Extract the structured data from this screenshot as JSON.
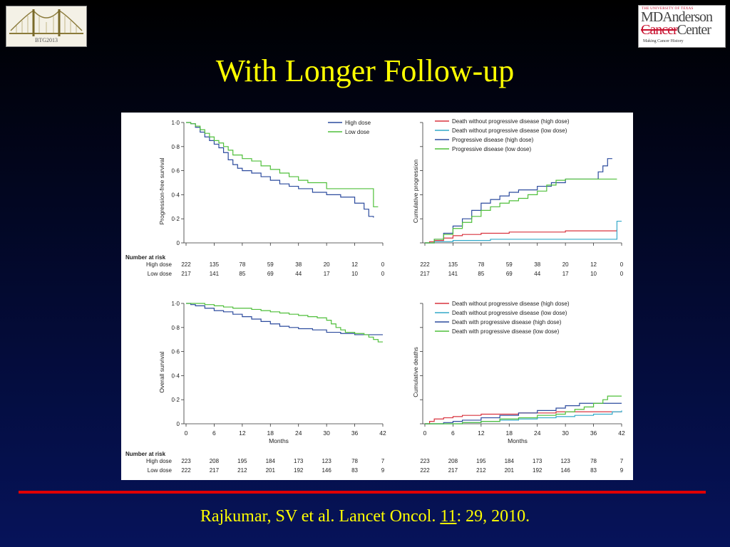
{
  "slide": {
    "title": "With Longer Follow-up",
    "logo_left_text": "BTG2013",
    "logo_right": {
      "top": "THE UNIVERSITY OF TEXAS",
      "line1": "MDAnderson",
      "line2a": "Cancer",
      "line2b": "Center",
      "tagline": "Making Cancer History"
    },
    "citation": {
      "before": "Rajkumar, SV et al. Lancet Oncol. ",
      "volume": "11",
      "after": ": 29, 2010."
    }
  },
  "colors": {
    "high": "#2c4b9e",
    "low": "#4fbf3a",
    "red": "#d9333f",
    "cyan": "#32a9c9",
    "grid": "#333333"
  },
  "chart_data": [
    {
      "type": "line",
      "xlabel": "",
      "ylabel": "Progression-free survival",
      "xlim": [
        0,
        42
      ],
      "ylim": [
        0,
        1
      ],
      "yticks": [
        "0",
        "0·2",
        "0·4",
        "0·6",
        "0·8",
        "1·0"
      ],
      "xticks": [],
      "step": true,
      "series": [
        {
          "name": "High dose",
          "color": "high",
          "x": [
            0,
            1,
            2,
            3,
            4,
            5,
            6,
            7,
            8,
            9,
            10,
            11,
            12,
            14,
            16,
            18,
            20,
            22,
            24,
            27,
            30,
            33,
            36,
            38,
            39,
            40
          ],
          "y": [
            1.0,
            0.99,
            0.96,
            0.92,
            0.88,
            0.85,
            0.82,
            0.79,
            0.75,
            0.69,
            0.65,
            0.62,
            0.6,
            0.58,
            0.55,
            0.52,
            0.49,
            0.47,
            0.45,
            0.42,
            0.4,
            0.38,
            0.33,
            0.28,
            0.22,
            0.21
          ]
        },
        {
          "name": "Low dose",
          "color": "low",
          "x": [
            0,
            1,
            2,
            3,
            4,
            5,
            6,
            7,
            8,
            9,
            10,
            12,
            14,
            16,
            18,
            20,
            22,
            24,
            26,
            28,
            30,
            33,
            36,
            40,
            41
          ],
          "y": [
            1.0,
            0.99,
            0.97,
            0.94,
            0.91,
            0.88,
            0.85,
            0.83,
            0.8,
            0.77,
            0.73,
            0.7,
            0.68,
            0.64,
            0.61,
            0.58,
            0.55,
            0.52,
            0.5,
            0.5,
            0.45,
            0.45,
            0.45,
            0.3,
            0.3
          ]
        }
      ],
      "legend": [
        "High dose",
        "Low dose"
      ],
      "number_at_risk": {
        "title": "Number at risk",
        "rows": [
          {
            "label": "High dose",
            "values": [
              "222",
              "135",
              "78",
              "59",
              "38",
              "20",
              "12",
              "0"
            ]
          },
          {
            "label": "Low dose",
            "values": [
              "217",
              "141",
              "85",
              "69",
              "44",
              "17",
              "10",
              "0"
            ]
          }
        ]
      }
    },
    {
      "type": "line",
      "xlabel": "",
      "ylabel": "Cumulative progression",
      "xlim": [
        0,
        42
      ],
      "ylim": [
        0,
        1
      ],
      "yticks": [],
      "xticks": [],
      "step": true,
      "series": [
        {
          "name": "Death without progressive disease (high dose)",
          "color": "red",
          "x": [
            0,
            1,
            2,
            4,
            6,
            8,
            10,
            12,
            14,
            16,
            18,
            20,
            24,
            30,
            36,
            41
          ],
          "y": [
            0,
            0.01,
            0.02,
            0.04,
            0.06,
            0.07,
            0.07,
            0.08,
            0.08,
            0.08,
            0.09,
            0.09,
            0.09,
            0.1,
            0.1,
            0.11
          ]
        },
        {
          "name": "Death without progressive disease (low dose)",
          "color": "cyan",
          "x": [
            0,
            2,
            6,
            10,
            14,
            18,
            24,
            30,
            36,
            40,
            41,
            42
          ],
          "y": [
            0,
            0.01,
            0.02,
            0.02,
            0.03,
            0.03,
            0.03,
            0.03,
            0.03,
            0.03,
            0.18,
            0.18
          ]
        },
        {
          "name": "Progressive disease (high dose)",
          "color": "high",
          "x": [
            0,
            2,
            4,
            6,
            8,
            10,
            12,
            14,
            16,
            18,
            20,
            24,
            27,
            30,
            33,
            36,
            37,
            38,
            39,
            40
          ],
          "y": [
            0,
            0.03,
            0.08,
            0.14,
            0.2,
            0.27,
            0.33,
            0.36,
            0.39,
            0.42,
            0.44,
            0.47,
            0.5,
            0.53,
            0.53,
            0.53,
            0.59,
            0.64,
            0.7,
            0.7
          ]
        },
        {
          "name": "Progressive disease (low dose)",
          "color": "low",
          "x": [
            0,
            2,
            4,
            6,
            8,
            10,
            12,
            14,
            16,
            18,
            20,
            22,
            24,
            26,
            28,
            30,
            32,
            36,
            41
          ],
          "y": [
            0,
            0.03,
            0.07,
            0.12,
            0.17,
            0.22,
            0.27,
            0.3,
            0.33,
            0.35,
            0.37,
            0.4,
            0.43,
            0.48,
            0.52,
            0.53,
            0.53,
            0.53,
            0.53
          ]
        }
      ],
      "legend": [
        "Death without progressive disease (high dose)",
        "Death without progressive disease (low dose)",
        "Progressive disease (high dose)",
        "Progressive disease (low dose)"
      ],
      "number_at_risk": {
        "rows": [
          {
            "values": [
              "222",
              "135",
              "78",
              "59",
              "38",
              "20",
              "12",
              "0"
            ]
          },
          {
            "values": [
              "217",
              "141",
              "85",
              "69",
              "44",
              "17",
              "10",
              "0"
            ]
          }
        ]
      }
    },
    {
      "type": "line",
      "xlabel": "Months",
      "ylabel": "Overall survival",
      "xlim": [
        0,
        42
      ],
      "ylim": [
        0,
        1
      ],
      "yticks": [
        "0",
        "0·2",
        "0·4",
        "0·6",
        "0·8",
        "1·0"
      ],
      "xticks": [
        "0",
        "6",
        "12",
        "18",
        "24",
        "30",
        "36",
        "42"
      ],
      "step": true,
      "series": [
        {
          "name": "High dose",
          "color": "high",
          "x": [
            0,
            1,
            2,
            4,
            6,
            8,
            10,
            12,
            14,
            16,
            18,
            20,
            22,
            24,
            27,
            30,
            33,
            36,
            39,
            42
          ],
          "y": [
            1.0,
            0.99,
            0.98,
            0.96,
            0.94,
            0.93,
            0.91,
            0.89,
            0.87,
            0.85,
            0.83,
            0.81,
            0.8,
            0.79,
            0.78,
            0.76,
            0.75,
            0.74,
            0.74,
            0.74
          ]
        },
        {
          "name": "Low dose",
          "color": "low",
          "x": [
            0,
            2,
            4,
            6,
            8,
            10,
            12,
            14,
            16,
            18,
            20,
            22,
            24,
            26,
            28,
            30,
            31,
            32,
            33,
            34,
            36,
            38,
            39,
            40,
            41,
            42
          ],
          "y": [
            1.0,
            1.0,
            0.99,
            0.98,
            0.97,
            0.96,
            0.96,
            0.95,
            0.94,
            0.93,
            0.92,
            0.91,
            0.9,
            0.89,
            0.88,
            0.86,
            0.83,
            0.8,
            0.78,
            0.76,
            0.75,
            0.74,
            0.72,
            0.7,
            0.68,
            0.68
          ]
        }
      ],
      "legend": [],
      "number_at_risk": {
        "title": "Number at risk",
        "rows": [
          {
            "label": "High dose",
            "values": [
              "223",
              "208",
              "195",
              "184",
              "173",
              "123",
              "78",
              "7"
            ]
          },
          {
            "label": "Low dose",
            "values": [
              "222",
              "217",
              "212",
              "201",
              "192",
              "146",
              "83",
              "9"
            ]
          }
        ]
      }
    },
    {
      "type": "line",
      "xlabel": "Months",
      "ylabel": "Cumulative deaths",
      "xlim": [
        0,
        42
      ],
      "ylim": [
        0,
        1
      ],
      "yticks": [],
      "xticks": [
        "0",
        "6",
        "12",
        "18",
        "24",
        "30",
        "36",
        "42"
      ],
      "step": true,
      "series": [
        {
          "name": "Death without progressive disease (high dose)",
          "color": "red",
          "x": [
            0,
            1,
            2,
            4,
            6,
            8,
            10,
            12,
            16,
            20,
            24,
            28,
            32,
            36,
            42
          ],
          "y": [
            0,
            0.02,
            0.04,
            0.05,
            0.06,
            0.07,
            0.07,
            0.08,
            0.08,
            0.09,
            0.09,
            0.1,
            0.1,
            0.1,
            0.1
          ]
        },
        {
          "name": "Death without progressive disease (low dose)",
          "color": "cyan",
          "x": [
            0,
            4,
            8,
            12,
            16,
            20,
            24,
            28,
            32,
            36,
            40,
            42
          ],
          "y": [
            0,
            0.0,
            0.01,
            0.02,
            0.03,
            0.04,
            0.05,
            0.06,
            0.07,
            0.08,
            0.1,
            0.11
          ]
        },
        {
          "name": "Death with progressive disease (high dose)",
          "color": "high",
          "x": [
            0,
            4,
            6,
            8,
            12,
            16,
            20,
            24,
            28,
            30,
            33,
            36,
            42
          ],
          "y": [
            0,
            0.01,
            0.02,
            0.03,
            0.05,
            0.07,
            0.09,
            0.11,
            0.13,
            0.15,
            0.17,
            0.17,
            0.17
          ]
        },
        {
          "name": "Death with progressive disease (low dose)",
          "color": "low",
          "x": [
            0,
            4,
            8,
            12,
            16,
            20,
            24,
            28,
            30,
            32,
            34,
            36,
            38,
            39,
            42
          ],
          "y": [
            0,
            0.0,
            0.01,
            0.02,
            0.04,
            0.05,
            0.07,
            0.08,
            0.1,
            0.12,
            0.14,
            0.17,
            0.2,
            0.23,
            0.23
          ]
        }
      ],
      "legend": [
        "Death without progressive disease (high dose)",
        "Death without progressive disease (low dose)",
        "Death with progressive disease (high dose)",
        "Death with progressive disease (low dose)"
      ],
      "number_at_risk": {
        "rows": [
          {
            "values": [
              "223",
              "208",
              "195",
              "184",
              "173",
              "123",
              "78",
              "7"
            ]
          },
          {
            "values": [
              "222",
              "217",
              "212",
              "201",
              "192",
              "146",
              "83",
              "9"
            ]
          }
        ]
      }
    }
  ]
}
